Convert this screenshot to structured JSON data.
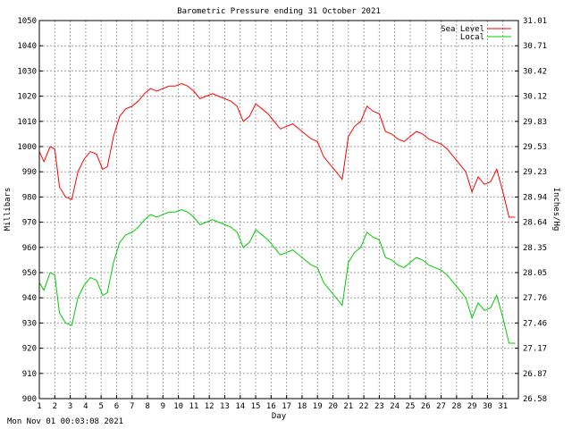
{
  "footer": {
    "timestamp": "Mon Nov 01 00:03:08 2021"
  },
  "colors": {
    "sea_level": "#ff0000",
    "local": "#00cc00",
    "grid": "#a0a0a0"
  },
  "chart_data": {
    "type": "line",
    "title": "Barometric Pressure ending 31 October 2021",
    "xlabel": "Day",
    "ylabel": "Millibars",
    "y2label": "Inches/Hg",
    "xlim": [
      1,
      32
    ],
    "ylim": [
      900,
      1050
    ],
    "y2lim": [
      26.58,
      31.01
    ],
    "grid": true,
    "legend_position": "top-right",
    "x_ticks": [
      "1",
      "2",
      "3",
      "4",
      "5",
      "6",
      "7",
      "8",
      "9",
      "10",
      "11",
      "12",
      "13",
      "14",
      "15",
      "16",
      "17",
      "18",
      "19",
      "20",
      "21",
      "22",
      "23",
      "24",
      "25",
      "26",
      "27",
      "28",
      "29",
      "30",
      "31"
    ],
    "y_ticks": [
      "900",
      "910",
      "920",
      "930",
      "940",
      "950",
      "960",
      "970",
      "980",
      "990",
      "1000",
      "1010",
      "1020",
      "1030",
      "1040",
      "1050"
    ],
    "y2_ticks": [
      "26.58",
      "26.87",
      "27.17",
      "27.46",
      "27.76",
      "28.05",
      "28.35",
      "28.64",
      "28.94",
      "29.23",
      "29.53",
      "29.83",
      "30.12",
      "30.42",
      "30.71",
      "31.01"
    ],
    "series": [
      {
        "name": "Sea Level",
        "color": "#ff0000",
        "x": [
          1.0,
          1.3,
          1.7,
          2.0,
          2.3,
          2.7,
          3.1,
          3.5,
          3.9,
          4.3,
          4.7,
          5.1,
          5.4,
          5.8,
          6.2,
          6.6,
          7.0,
          7.4,
          7.8,
          8.2,
          8.6,
          9.0,
          9.4,
          9.8,
          10.2,
          10.6,
          11.0,
          11.4,
          11.8,
          12.2,
          12.6,
          13.0,
          13.4,
          13.8,
          14.2,
          14.6,
          15.0,
          15.4,
          15.8,
          16.2,
          16.6,
          17.0,
          17.4,
          17.8,
          18.2,
          18.6,
          19.0,
          19.4,
          19.8,
          20.2,
          20.6,
          21.0,
          21.4,
          21.8,
          22.2,
          22.6,
          23.0,
          23.4,
          23.8,
          24.2,
          24.6,
          25.0,
          25.4,
          25.8,
          26.2,
          26.6,
          27.0,
          27.4,
          27.8,
          28.2,
          28.6,
          29.0,
          29.4,
          29.8,
          30.2,
          30.6,
          31.0,
          31.4,
          31.8
        ],
        "values": [
          998,
          994,
          1000,
          999,
          984,
          980,
          979,
          990,
          995,
          998,
          997,
          991,
          992,
          1004,
          1012,
          1015,
          1016,
          1018,
          1021,
          1023,
          1022,
          1023,
          1024,
          1024,
          1025,
          1024,
          1022,
          1019,
          1020,
          1021,
          1020,
          1019,
          1018,
          1016,
          1010,
          1012,
          1017,
          1015,
          1013,
          1010,
          1007,
          1008,
          1009,
          1007,
          1005,
          1003,
          1002,
          996,
          993,
          990,
          987,
          1004,
          1008,
          1010,
          1016,
          1014,
          1013,
          1006,
          1005,
          1003,
          1002,
          1004,
          1006,
          1005,
          1003,
          1002,
          1001,
          999,
          996,
          993,
          990,
          982,
          988,
          985,
          986,
          991,
          982,
          972,
          972
        ]
      },
      {
        "name": "Local",
        "color": "#00cc00",
        "x": [
          1.0,
          1.3,
          1.7,
          2.0,
          2.3,
          2.7,
          3.1,
          3.5,
          3.9,
          4.3,
          4.7,
          5.1,
          5.4,
          5.8,
          6.2,
          6.6,
          7.0,
          7.4,
          7.8,
          8.2,
          8.6,
          9.0,
          9.4,
          9.8,
          10.2,
          10.6,
          11.0,
          11.4,
          11.8,
          12.2,
          12.6,
          13.0,
          13.4,
          13.8,
          14.2,
          14.6,
          15.0,
          15.4,
          15.8,
          16.2,
          16.6,
          17.0,
          17.4,
          17.8,
          18.2,
          18.6,
          19.0,
          19.4,
          19.8,
          20.2,
          20.6,
          21.0,
          21.4,
          21.8,
          22.2,
          22.6,
          23.0,
          23.4,
          23.8,
          24.2,
          24.6,
          25.0,
          25.4,
          25.8,
          26.2,
          26.6,
          27.0,
          27.4,
          27.8,
          28.2,
          28.6,
          29.0,
          29.4,
          29.8,
          30.2,
          30.6,
          31.0,
          31.4,
          31.8
        ],
        "values": [
          946,
          943,
          950,
          949,
          934,
          930,
          929,
          940,
          945,
          948,
          947,
          941,
          942,
          954,
          962,
          965,
          966,
          968,
          971,
          973,
          972,
          973,
          974,
          974,
          975,
          974,
          972,
          969,
          970,
          971,
          970,
          969,
          968,
          966,
          960,
          962,
          967,
          965,
          963,
          960,
          957,
          958,
          959,
          957,
          955,
          953,
          952,
          946,
          943,
          940,
          937,
          954,
          958,
          960,
          966,
          964,
          963,
          956,
          955,
          953,
          952,
          954,
          956,
          955,
          953,
          952,
          951,
          949,
          946,
          943,
          940,
          932,
          938,
          935,
          936,
          941,
          932,
          922,
          922
        ]
      }
    ]
  }
}
